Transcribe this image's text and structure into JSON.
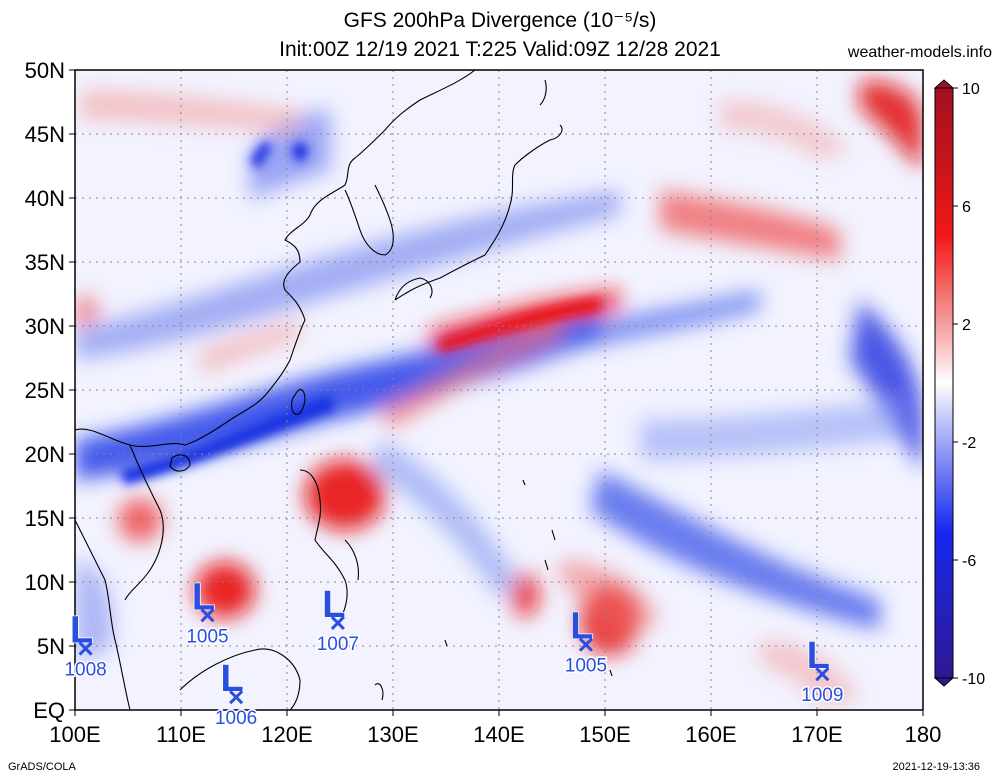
{
  "title_line1": "GFS 200hPa Divergence (10⁻⁵/s)",
  "title_line2": "Init:00Z 12/19 2021 T:225 Valid:09Z 12/28 2021",
  "credit": "weather-models.info",
  "footer_left": "GrADS/COLA",
  "footer_right": "2021-12-19-13:36",
  "map": {
    "lat_labels": [
      "EQ",
      "5N",
      "10N",
      "15N",
      "20N",
      "25N",
      "30N",
      "35N",
      "40N",
      "45N",
      "50N"
    ],
    "lon_labels": [
      "100E",
      "110E",
      "120E",
      "130E",
      "140E",
      "150E",
      "160E",
      "170E",
      "180"
    ],
    "lat_values": [
      0,
      5,
      10,
      15,
      20,
      25,
      30,
      35,
      40,
      45,
      50
    ],
    "lon_values": [
      100,
      110,
      120,
      130,
      140,
      150,
      160,
      170,
      180
    ]
  },
  "colorbar": {
    "labels": [
      "10",
      "6",
      "2",
      "-2",
      "-6",
      "-10"
    ],
    "values": [
      10,
      6,
      2,
      -2,
      -6,
      -10
    ],
    "colors": [
      "#a01020",
      "#e02020",
      "#f08080",
      "#ffffff",
      "#8090f0",
      "#2030e0",
      "#301890"
    ]
  },
  "lows": [
    {
      "label": "L",
      "pressure": "1008",
      "lon": 101.0,
      "lat": 4.8
    },
    {
      "label": "L",
      "pressure": "1005",
      "lon": 112.5,
      "lat": 7.4
    },
    {
      "label": "L",
      "pressure": "1006",
      "lon": 115.2,
      "lat": 1.0
    },
    {
      "label": "L",
      "pressure": "1007",
      "lon": 124.8,
      "lat": 6.8
    },
    {
      "label": "L",
      "pressure": "1005",
      "lon": 148.2,
      "lat": 5.1
    },
    {
      "label": "L",
      "pressure": "1009",
      "lon": 170.5,
      "lat": 2.8
    }
  ],
  "colors": {
    "low_marker": "#2a4fe0",
    "positive": "#e02020",
    "negative": "#2030e0"
  }
}
